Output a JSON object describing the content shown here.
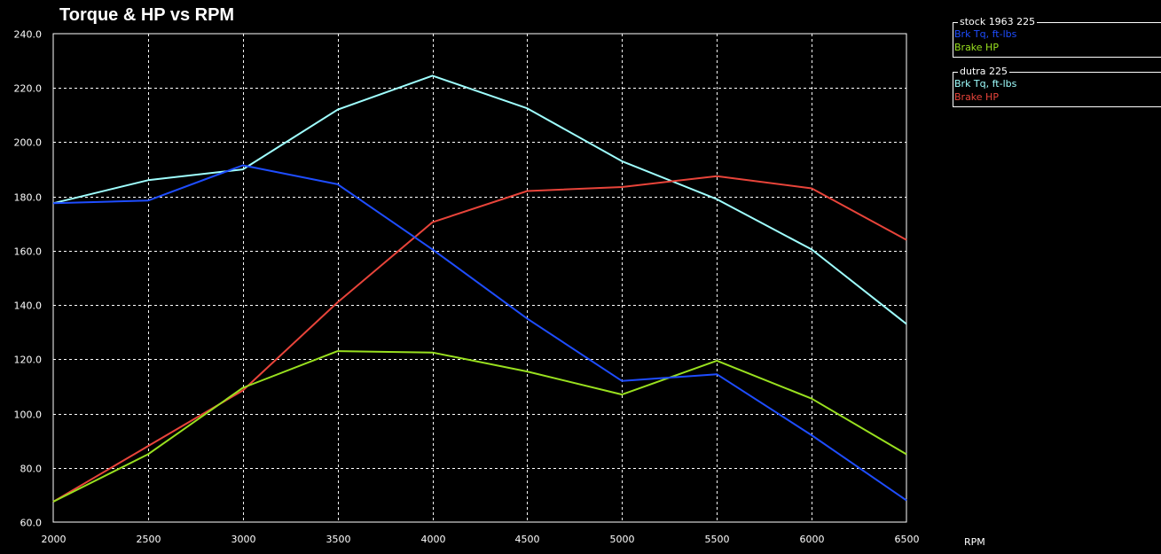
{
  "chart_data": {
    "type": "line",
    "title": "Torque & HP vs RPM",
    "xlabel": "RPM",
    "ylabel": "",
    "x": [
      2000,
      2500,
      3000,
      3500,
      4000,
      4500,
      5000,
      5500,
      6000,
      6500
    ],
    "x_tick_labels": [
      "2000",
      "2500",
      "3000",
      "3500",
      "4000",
      "4500",
      "5000",
      "5500",
      "6000",
      "6500"
    ],
    "xlim": [
      2000,
      6500
    ],
    "ylim": [
      60,
      240
    ],
    "y_ticks": [
      60,
      80,
      100,
      120,
      140,
      160,
      180,
      200,
      220,
      240
    ],
    "y_tick_labels": [
      "60.0",
      "80.0",
      "100.0",
      "120.0",
      "140.0",
      "160.0",
      "180.0",
      "200.0",
      "220.0",
      "240.0"
    ],
    "grid": true,
    "legend_placement": "right",
    "background": "#000000",
    "legend_groups": [
      {
        "title": "stock 1963 225",
        "series": [
          {
            "name": "Brk Tq, ft-lbs",
            "color": "#1e4dff",
            "values": [
              177.5,
              178.5,
              191.5,
              184.5,
              160.5,
              135.0,
              112.0,
              114.5,
              92.0,
              68.0
            ]
          },
          {
            "name": "Brake HP",
            "color": "#99e01f",
            "values": [
              67.5,
              85.0,
              109.5,
              123.0,
              122.5,
              115.5,
              107.0,
              119.5,
              105.5,
              85.0
            ]
          }
        ]
      },
      {
        "title": "dutra 225",
        "series": [
          {
            "name": "Brk Tq, ft-lbs",
            "color": "#9fffff",
            "values": [
              177.5,
              186.0,
              190.0,
              212.0,
              224.5,
              212.5,
              193.0,
              179.0,
              160.5,
              133.0
            ]
          },
          {
            "name": "Brake HP",
            "color": "#e8443a",
            "values": [
              67.5,
              88.0,
              108.5,
              141.0,
              170.5,
              182.0,
              183.5,
              187.5,
              183.0,
              164.0
            ]
          }
        ]
      }
    ]
  }
}
